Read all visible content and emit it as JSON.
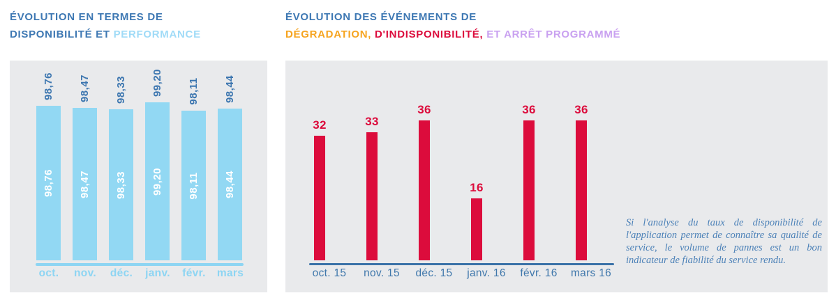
{
  "panel_bg": "#e9eaec",
  "titles": {
    "left": {
      "lines": [
        [
          {
            "text": "ÉVOLUTION EN TERMES DE",
            "color": "#3e78b3"
          }
        ],
        [
          {
            "text": "DISPONIBILITÉ ET ",
            "color": "#3e78b3"
          },
          {
            "text": "PERFORMANCE",
            "color": "#a0dbf7"
          }
        ]
      ]
    },
    "right": {
      "lines": [
        [
          {
            "text": "ÉVOLUTION DES ÉVÉNEMENTS DE",
            "color": "#3e78b3"
          }
        ],
        [
          {
            "text": "DÉGRADATION,",
            "color": "#f6a41f"
          },
          {
            "text": " D'INDISPONIBILITÉ,",
            "color": "#dc0c3c"
          },
          {
            "text": " ET ARRÊT PROGRAMMÉ",
            "color": "#c9a1f0"
          }
        ]
      ]
    }
  },
  "chart_data": [
    {
      "type": "bar",
      "title": "ÉVOLUTION EN TERMES DE DISPONIBILITÉ ET PERFORMANCE",
      "categories": [
        "oct.",
        "nov.",
        "déc.",
        "janv.",
        "févr.",
        "mars"
      ],
      "values": [
        98.76,
        98.47,
        98.33,
        99.2,
        98.11,
        98.44
      ],
      "value_labels": [
        "98,76",
        "98,47",
        "98,33",
        "99,20",
        "98,11",
        "98,44"
      ],
      "xlabel": "",
      "ylabel": "",
      "ylim": [
        79,
        100
      ],
      "grid": false,
      "legend": null,
      "bar_color": "#92d8f3",
      "value_label_color": "#3b75af",
      "inner_label_color": "#ffffff",
      "axis_color": "#8dd5f3",
      "category_label_color": "#8dd5f3"
    },
    {
      "type": "bar",
      "title": "ÉVOLUTION DES ÉVÉNEMENTS DE DÉGRADATION, D'INDISPONIBILITÉ, ET ARRÊT PROGRAMMÉ",
      "categories": [
        "oct. 15",
        "nov. 15",
        "déc. 15",
        "janv. 16",
        "févr. 16",
        "mars 16"
      ],
      "values": [
        32,
        33,
        36,
        16,
        36,
        36
      ],
      "value_labels": [
        "32",
        "33",
        "36",
        "16",
        "36",
        "36"
      ],
      "xlabel": "",
      "ylabel": "",
      "ylim": [
        0,
        38
      ],
      "grid": false,
      "legend": null,
      "bar_color": "#dc0c3c",
      "value_label_color": "#dc0c3c",
      "axis_color": "#3b72a8",
      "category_label_color": "#3f77ab"
    }
  ],
  "annotation": {
    "text": "Si l'analyse du taux de disponibilité de l'application permet de connaître sa qualité de service, le volume de pannes est un bon indicateur de fiabilité du service rendu.",
    "color": "#4d82b8"
  }
}
